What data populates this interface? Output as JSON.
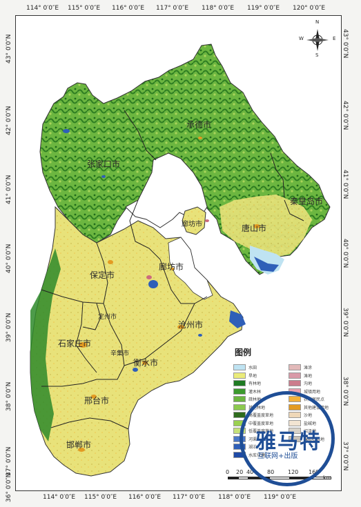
{
  "longitude_ticks": [
    "114° 0′0″E",
    "115° 0′0″E",
    "116° 0′0″E",
    "117° 0′0″E",
    "118° 0′0″E",
    "119° 0′0″E",
    "120° 0′0″E"
  ],
  "latitude_ticks": [
    "43° 0′0″N",
    "42° 0′0″N",
    "41° 0′0″N",
    "40° 0′0″N",
    "39° 0′0″N",
    "38° 0′0″N",
    "37° 0′0″N",
    "36° 0′0″N"
  ],
  "cities": {
    "chengde": "承德市",
    "zhangjiakou": "张家口市",
    "qinhuangdao": "秦皇岛市",
    "tangshan": "唐山市",
    "langfang_north": "廊坊市",
    "langfang": "廊坊市",
    "baoding": "保定市",
    "dingzhou": "定州市",
    "cangzhou": "沧州市",
    "shijiazhuang": "石家庄市",
    "xinji": "辛集市",
    "hengshui": "衡水市",
    "xingtai": "邢台市",
    "handan": "邯郸市"
  },
  "legend": {
    "title": "图例",
    "left": [
      {
        "label": "水田",
        "color": "#bfe3f2"
      },
      {
        "label": "旱地",
        "color": "#eaeb7a"
      },
      {
        "label": "有林地",
        "color": "#1f7a23"
      },
      {
        "label": "灌木林",
        "color": "#3c9a2e"
      },
      {
        "label": "疏林地",
        "color": "#6cb640"
      },
      {
        "label": "其他林地",
        "color": "#8cc94f"
      },
      {
        "label": "高覆盖度草地",
        "color": "#2e6b1d"
      },
      {
        "label": "中覆盖度草地",
        "color": "#9bd150"
      },
      {
        "label": "低覆盖度草地",
        "color": "#c6e27a"
      },
      {
        "label": "河渠",
        "color": "#4a78c8"
      },
      {
        "label": "湖泊",
        "color": "#2f5fb8"
      },
      {
        "label": "水库坑塘",
        "color": "#1e4aa6"
      }
    ],
    "right": [
      {
        "label": "滩涂",
        "color": "#e2b9b9"
      },
      {
        "label": "滩地",
        "color": "#d99aa8"
      },
      {
        "label": "沟地",
        "color": "#cc7d8d"
      },
      {
        "label": "城镇用地",
        "color": "#e8a0b0"
      },
      {
        "label": "农村居民点",
        "color": "#f4b13a"
      },
      {
        "label": "其他建设用地",
        "color": "#e39b22"
      },
      {
        "label": "沙地",
        "color": "#efd8b8"
      },
      {
        "label": "盐碱地",
        "color": "#f2e4d2"
      },
      {
        "label": "沼泽地",
        "color": "#d8d2c8"
      },
      {
        "label": "裸岩石砾地",
        "color": "#c9c2b8"
      }
    ]
  },
  "scale": {
    "labels": [
      "0",
      "20",
      "40",
      "80",
      "120",
      "160"
    ],
    "unit": "km"
  },
  "compass": {
    "n": "N",
    "s": "S",
    "e": "E",
    "w": "W"
  },
  "watermark": {
    "main": "雅马特",
    "sub": "互联网+出版"
  }
}
